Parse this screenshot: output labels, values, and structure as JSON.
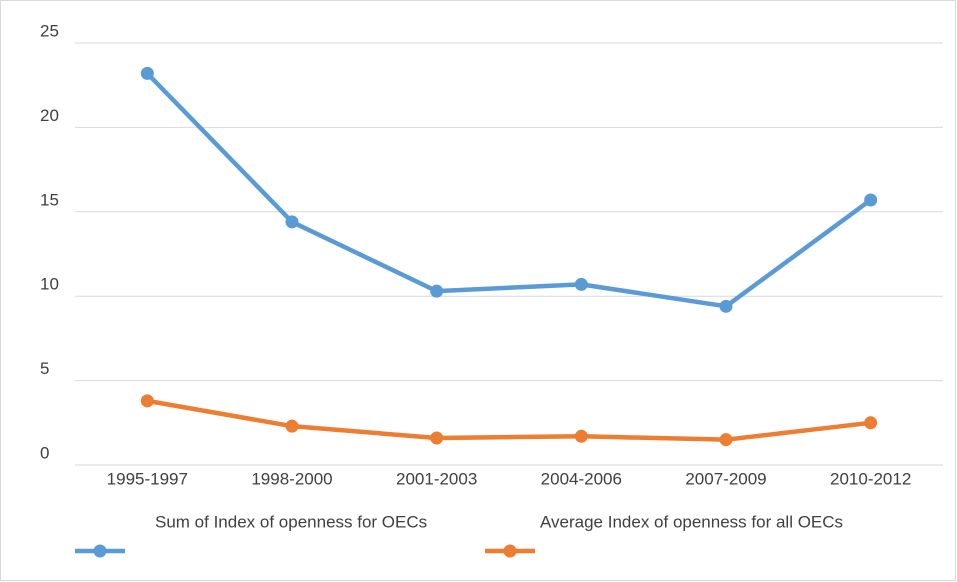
{
  "chart_data": {
    "type": "line",
    "categories": [
      "1995-1997",
      "1998-2000",
      "2001-2003",
      "2004-2006",
      "2007-2009",
      "2010-2012"
    ],
    "series": [
      {
        "name": "Sum of Index of openness for OECs",
        "color": "#5b9bd5",
        "values": [
          23.2,
          14.4,
          10.3,
          10.7,
          9.4,
          15.7
        ]
      },
      {
        "name": "Average Index of openness for all OECs",
        "color": "#ed7d31",
        "values": [
          3.8,
          2.3,
          1.6,
          1.7,
          1.5,
          2.5
        ]
      }
    ],
    "ylim": [
      0,
      25
    ],
    "yticks": [
      0,
      5,
      10,
      15,
      20,
      25
    ],
    "grid": true,
    "legend": "bottom"
  }
}
